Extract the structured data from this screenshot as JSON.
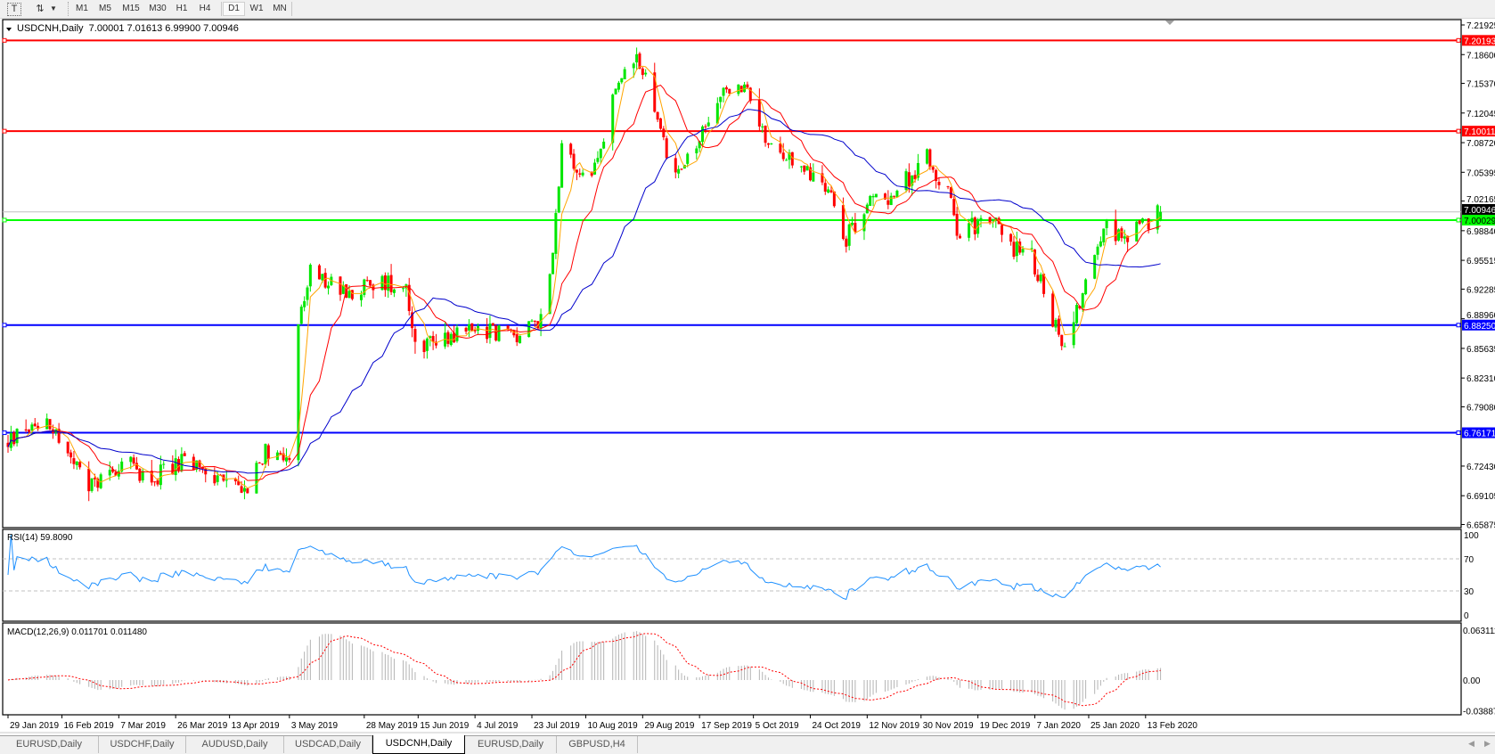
{
  "toolbar": {
    "icons": [
      "text-tool-icon",
      "arrows-tool-icon",
      "dropdown-arrow-icon"
    ],
    "timeframes": [
      "M1",
      "M5",
      "M15",
      "M30",
      "H1",
      "H4",
      "D1",
      "W1",
      "MN"
    ],
    "active_timeframe": "D1"
  },
  "chart": {
    "header": "USDCNH,Daily  7.00001 7.01613 6.99900 7.00946",
    "symbol": "USDCNH,Daily",
    "colors": {
      "bull": "#00e600",
      "bear": "#ff0000",
      "ma_fast": "#ffa500",
      "ma_mid": "#ff0000",
      "ma_slow": "#0000cc",
      "rsi": "#1e90ff",
      "macd_hist": "#b4b4b4",
      "macd_signal": "#ff0000"
    }
  },
  "chart_data": {
    "type": "candlestick",
    "symbol": "USDCNH",
    "timeframe": "Daily",
    "last_bar": {
      "open": 7.00001,
      "high": 7.01613,
      "low": 6.999,
      "close": 7.00946
    },
    "price_axis": {
      "range": [
        6.65875,
        7.21925
      ],
      "ticks": [
        "7.21925",
        "7.18600",
        "7.15370",
        "7.12045",
        "7.08720",
        "7.05395",
        "7.02165",
        "6.98840",
        "6.95515",
        "6.92285",
        "6.88960",
        "6.85635",
        "6.82310",
        "6.79080",
        "6.72430",
        "6.69105",
        "6.65875"
      ]
    },
    "current_price": {
      "label": "7.00946",
      "value": 7.00946,
      "color": "#c0c0c0"
    },
    "horizontal_lines": [
      {
        "label": "7.20193",
        "value": 7.20193,
        "color": "#ff0000"
      },
      {
        "label": "7.10011",
        "value": 7.10011,
        "color": "#ff0000"
      },
      {
        "label": "7.00029",
        "value": 7.00029,
        "color": "#00ff00"
      },
      {
        "label": "6.88250",
        "value": 6.8825,
        "color": "#0000ff"
      },
      {
        "label": "6.76171",
        "value": 6.76171,
        "color": "#0000ff"
      }
    ],
    "date_axis": {
      "labels": [
        {
          "text": "29 Jan 2019",
          "date": "2019-01-29"
        },
        {
          "text": "16 Feb 2019",
          "date": "2019-02-16"
        },
        {
          "text": "7 Mar 2019",
          "date": "2019-03-07"
        },
        {
          "text": "26 Mar 2019",
          "date": "2019-03-26"
        },
        {
          "text": "13 Apr 2019",
          "date": "2019-04-13"
        },
        {
          "text": "3 May 2019",
          "date": "2019-05-03"
        },
        {
          "text": "28 May 2019",
          "date": "2019-05-28"
        },
        {
          "text": "15 Jun 2019",
          "date": "2019-06-15"
        },
        {
          "text": "4 Jul 2019",
          "date": "2019-07-04"
        },
        {
          "text": "23 Jul 2019",
          "date": "2019-07-23"
        },
        {
          "text": "10 Aug 2019",
          "date": "2019-08-10"
        },
        {
          "text": "29 Aug 2019",
          "date": "2019-08-29"
        },
        {
          "text": "17 Sep 2019",
          "date": "2019-09-17"
        },
        {
          "text": "5 Oct 2019",
          "date": "2019-10-05"
        },
        {
          "text": "24 Oct 2019",
          "date": "2019-10-24"
        },
        {
          "text": "12 Nov 2019",
          "date": "2019-11-12"
        },
        {
          "text": "30 Nov 2019",
          "date": "2019-11-30"
        },
        {
          "text": "19 Dec 2019",
          "date": "2019-12-19"
        },
        {
          "text": "7 Jan 2020",
          "date": "2020-01-07"
        },
        {
          "text": "25 Jan 2020",
          "date": "2020-01-25"
        },
        {
          "text": "13 Feb 2020",
          "date": "2020-02-13"
        }
      ]
    },
    "close_path": [
      [
        "2019-01-29",
        6.75
      ],
      [
        "2019-02-05",
        6.77
      ],
      [
        "2019-02-11",
        6.78
      ],
      [
        "2019-02-19",
        6.73
      ],
      [
        "2019-02-25",
        6.7
      ],
      [
        "2019-03-08",
        6.73
      ],
      [
        "2019-03-18",
        6.71
      ],
      [
        "2019-03-28",
        6.73
      ],
      [
        "2019-04-09",
        6.71
      ],
      [
        "2019-04-19",
        6.7
      ],
      [
        "2019-04-25",
        6.74
      ],
      [
        "2019-05-03",
        6.74
      ],
      [
        "2019-05-06",
        6.88
      ],
      [
        "2019-05-10",
        6.94
      ],
      [
        "2019-05-21",
        6.92
      ],
      [
        "2019-06-03",
        6.93
      ],
      [
        "2019-06-11",
        6.93
      ],
      [
        "2019-06-14",
        6.86
      ],
      [
        "2019-06-24",
        6.87
      ],
      [
        "2019-07-04",
        6.88
      ],
      [
        "2019-07-19",
        6.87
      ],
      [
        "2019-07-26",
        6.89
      ],
      [
        "2019-07-30",
        6.97
      ],
      [
        "2019-08-02",
        7.08
      ],
      [
        "2019-08-08",
        7.05
      ],
      [
        "2019-08-14",
        7.06
      ],
      [
        "2019-08-20",
        7.15
      ],
      [
        "2019-08-28",
        7.18
      ],
      [
        "2019-09-02",
        7.12
      ],
      [
        "2019-09-09",
        7.05
      ],
      [
        "2019-09-16",
        7.08
      ],
      [
        "2019-09-25",
        7.15
      ],
      [
        "2019-10-04",
        7.14
      ],
      [
        "2019-10-10",
        7.08
      ],
      [
        "2019-10-21",
        7.06
      ],
      [
        "2019-10-30",
        7.04
      ],
      [
        "2019-11-05",
        6.98
      ],
      [
        "2019-11-12",
        7.02
      ],
      [
        "2019-11-21",
        7.03
      ],
      [
        "2019-12-02",
        7.07
      ],
      [
        "2019-12-09",
        7.03
      ],
      [
        "2019-12-12",
        6.99
      ],
      [
        "2019-12-24",
        7.0
      ],
      [
        "2019-12-30",
        6.97
      ],
      [
        "2020-01-06",
        6.96
      ],
      [
        "2020-01-13",
        6.89
      ],
      [
        "2020-01-17",
        6.86
      ],
      [
        "2020-01-24",
        6.93
      ],
      [
        "2020-01-31",
        7.01
      ],
      [
        "2020-02-04",
        6.98
      ],
      [
        "2020-02-11",
        6.99
      ],
      [
        "2020-02-18",
        7.00946
      ]
    ],
    "rsi": {
      "label": "RSI(14) 59.8090",
      "value": 59.809,
      "range": [
        0,
        100
      ],
      "levels": [
        30,
        70
      ],
      "ticks": [
        "100",
        "70",
        "30",
        "0"
      ]
    },
    "macd": {
      "label": "MACD(12,26,9) 0.011701 0.011480",
      "main": 0.011701,
      "signal": 0.01148,
      "ticks": [
        "0.063111",
        "0.00",
        "-0.03887"
      ]
    },
    "grid": false
  },
  "tabs": [
    {
      "label": "EURUSD,Daily",
      "active": false
    },
    {
      "label": "USDCHF,Daily",
      "active": false
    },
    {
      "label": "AUDUSD,Daily",
      "active": false
    },
    {
      "label": "USDCAD,Daily",
      "active": false
    },
    {
      "label": "USDCNH,Daily",
      "active": true
    },
    {
      "label": "EURUSD,Daily",
      "active": false
    },
    {
      "label": "GBPUSD,H4",
      "active": false
    }
  ]
}
